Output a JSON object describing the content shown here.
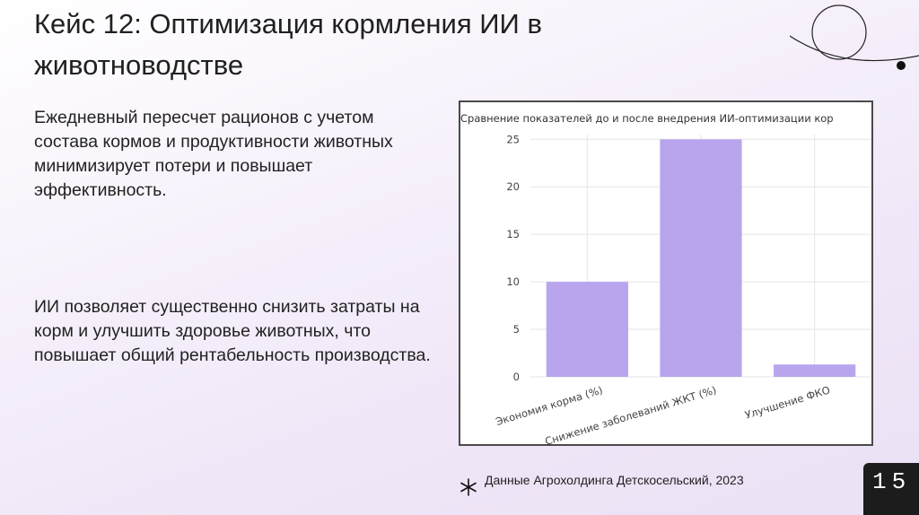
{
  "slide": {
    "title": "Кейс 12: Оптимизация кормления ИИ в животноводстве",
    "paragraph_1": "Ежедневный пересчет рационов с учетом состава кормов и продуктивности животных минимизирует потери и повышает эффективность.",
    "paragraph_2": "ИИ позволяет существенно снизить затраты на корм и улучшить здоровье животных, что повышает общий рентабельность производства.",
    "source": "Данные Агрохолдинга Детскосельский, 2023",
    "page_number": "15"
  },
  "colors": {
    "bar": "#b8a5ee",
    "grid": "#e6e6e6",
    "frame": "#4a4a4a"
  },
  "chart_data": {
    "type": "bar",
    "title": "Сравнение показателей до и после внедрения ИИ-оптимизации кор",
    "categories": [
      "Экономия корма (%)",
      "Снижение заболеваний ЖКТ (%)",
      "Улучшение ФКО"
    ],
    "values": [
      10,
      25,
      1.3
    ],
    "yticks": [
      0,
      5,
      10,
      15,
      20,
      25
    ],
    "ylim": [
      0,
      25.5
    ],
    "grid": true
  }
}
